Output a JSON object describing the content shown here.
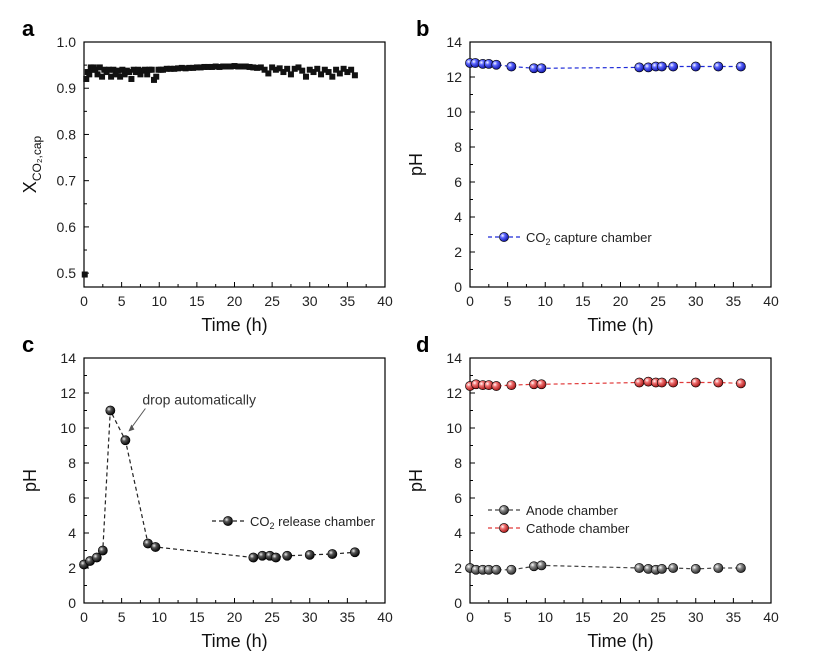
{
  "chart_data": [
    {
      "id": "a",
      "type": "scatter",
      "panel_label": "a",
      "xlabel": "Time (h)",
      "ylabel_main": "X",
      "ylabel_sub": "CO₂,cap",
      "xlim": [
        0,
        40
      ],
      "ylim": [
        0.47,
        1.0
      ],
      "xticks": [
        0,
        5,
        10,
        15,
        20,
        25,
        30,
        35,
        40
      ],
      "yticks": [
        0.5,
        0.6,
        0.7,
        0.8,
        0.9,
        1.0
      ],
      "ytick_labels": [
        "0.5",
        "0.6",
        "0.7",
        "0.8",
        "0.9",
        "1.0"
      ],
      "series": [
        {
          "name": "X_CO2,cap",
          "marker": "square",
          "color": "#111111",
          "x": [
            0.1,
            0.3,
            0.5,
            0.7,
            0.9,
            1.1,
            1.3,
            1.5,
            1.8,
            2.1,
            2.4,
            2.7,
            3.0,
            3.3,
            3.6,
            3.9,
            4.2,
            4.5,
            4.8,
            5.1,
            5.4,
            5.7,
            6.0,
            6.3,
            6.6,
            6.9,
            7.2,
            7.5,
            7.8,
            8.1,
            8.4,
            8.7,
            9.0,
            9.3,
            9.6,
            9.9,
            10.2,
            10.5,
            11.0,
            11.5,
            12.0,
            12.5,
            13.0,
            13.5,
            14.0,
            14.5,
            15.0,
            15.5,
            16.0,
            16.5,
            17.0,
            17.5,
            18.0,
            18.5,
            19.0,
            19.5,
            20.0,
            20.5,
            21.0,
            21.5,
            22.0,
            22.5,
            23.0,
            23.5,
            24.0,
            24.5,
            25.0,
            25.5,
            26.0,
            26.5,
            27.0,
            27.5,
            28.0,
            28.5,
            29.0,
            29.5,
            30.0,
            30.5,
            31.0,
            31.5,
            32.0,
            32.5,
            33.0,
            33.5,
            34.0,
            34.5,
            35.0,
            35.5,
            36.0
          ],
          "y": [
            0.497,
            0.92,
            0.935,
            0.93,
            0.945,
            0.94,
            0.945,
            0.94,
            0.93,
            0.945,
            0.925,
            0.94,
            0.935,
            0.94,
            0.925,
            0.94,
            0.93,
            0.938,
            0.925,
            0.94,
            0.93,
            0.938,
            0.935,
            0.92,
            0.94,
            0.935,
            0.94,
            0.93,
            0.938,
            0.94,
            0.93,
            0.94,
            0.94,
            0.918,
            0.925,
            0.94,
            0.94,
            0.94,
            0.942,
            0.942,
            0.942,
            0.943,
            0.944,
            0.943,
            0.944,
            0.944,
            0.945,
            0.945,
            0.946,
            0.946,
            0.946,
            0.947,
            0.946,
            0.947,
            0.947,
            0.947,
            0.948,
            0.947,
            0.947,
            0.947,
            0.946,
            0.945,
            0.944,
            0.945,
            0.94,
            0.932,
            0.945,
            0.94,
            0.943,
            0.935,
            0.942,
            0.93,
            0.942,
            0.945,
            0.938,
            0.925,
            0.94,
            0.935,
            0.942,
            0.93,
            0.94,
            0.935,
            0.925,
            0.94,
            0.932,
            0.942,
            0.935,
            0.94,
            0.928
          ]
        }
      ]
    },
    {
      "id": "b",
      "type": "line",
      "panel_label": "b",
      "xlabel": "Time (h)",
      "ylabel": "pH",
      "xlim": [
        0,
        40
      ],
      "ylim": [
        0,
        14
      ],
      "xticks": [
        0,
        5,
        10,
        15,
        20,
        25,
        30,
        35,
        40
      ],
      "yticks": [
        0,
        2,
        4,
        6,
        8,
        10,
        12,
        14
      ],
      "legend_position": "center-left",
      "series": [
        {
          "name_prefix": "CO",
          "name_sub": "2",
          "name_suffix": " capture chamber",
          "color": "#1f2bd8",
          "x": [
            0,
            0.7,
            1.7,
            2.5,
            3.5,
            5.5,
            8.5,
            9.5,
            22.5,
            23.7,
            24.7,
            25.5,
            27,
            30,
            33,
            36
          ],
          "y": [
            12.8,
            12.8,
            12.75,
            12.75,
            12.7,
            12.6,
            12.5,
            12.5,
            12.55,
            12.55,
            12.6,
            12.6,
            12.6,
            12.6,
            12.6,
            12.6
          ]
        }
      ]
    },
    {
      "id": "c",
      "type": "line",
      "panel_label": "c",
      "xlabel": "Time (h)",
      "ylabel": "pH",
      "xlim": [
        0,
        40
      ],
      "ylim": [
        0,
        14
      ],
      "xticks": [
        0,
        5,
        10,
        15,
        20,
        25,
        30,
        35,
        40
      ],
      "yticks": [
        0,
        2,
        4,
        6,
        8,
        10,
        12,
        14
      ],
      "legend_position": "center-right",
      "annotation": {
        "text": "drop automatically",
        "x": 5.5,
        "y": 9.4
      },
      "series": [
        {
          "name_prefix": "CO",
          "name_sub": "2",
          "name_suffix": " release chamber",
          "color": "#222222",
          "x": [
            0,
            0.8,
            1.7,
            2.5,
            3.5,
            5.5,
            8.5,
            9.5,
            22.5,
            23.7,
            24.7,
            25.5,
            27,
            30,
            33,
            36
          ],
          "y": [
            2.2,
            2.4,
            2.6,
            3.0,
            11.0,
            9.3,
            3.4,
            3.2,
            2.6,
            2.7,
            2.7,
            2.6,
            2.7,
            2.75,
            2.8,
            2.9
          ]
        }
      ]
    },
    {
      "id": "d",
      "type": "line",
      "panel_label": "d",
      "xlabel": "Time (h)",
      "ylabel": "pH",
      "xlim": [
        0,
        40
      ],
      "ylim": [
        0,
        14
      ],
      "xticks": [
        0,
        5,
        10,
        15,
        20,
        25,
        30,
        35,
        40
      ],
      "yticks": [
        0,
        2,
        4,
        6,
        8,
        10,
        12,
        14
      ],
      "legend_position": "center-left",
      "series": [
        {
          "name": "Anode chamber",
          "color": "#444444",
          "x": [
            0,
            0.8,
            1.7,
            2.5,
            3.5,
            5.5,
            8.5,
            9.5,
            22.5,
            23.7,
            24.7,
            25.5,
            27,
            30,
            33,
            36
          ],
          "y": [
            2.0,
            1.9,
            1.9,
            1.9,
            1.9,
            1.9,
            2.1,
            2.15,
            2.0,
            1.95,
            1.9,
            1.95,
            2.0,
            1.95,
            2.0,
            2.0
          ]
        },
        {
          "name": "Cathode chamber",
          "color": "#e03a3a",
          "x": [
            0,
            0.8,
            1.7,
            2.5,
            3.5,
            5.5,
            8.5,
            9.5,
            22.5,
            23.7,
            24.7,
            25.5,
            27,
            30,
            33,
            36
          ],
          "y": [
            12.4,
            12.5,
            12.45,
            12.45,
            12.4,
            12.45,
            12.5,
            12.5,
            12.6,
            12.65,
            12.6,
            12.6,
            12.6,
            12.6,
            12.6,
            12.55
          ]
        }
      ]
    }
  ]
}
